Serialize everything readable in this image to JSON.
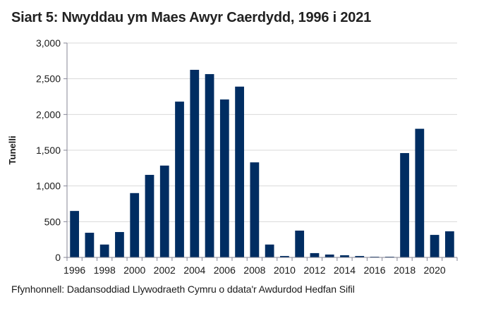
{
  "title": "Siart 5: Nwyddau ym Maes Awyr Caerdydd, 1996 i 2021",
  "source": "Ffynhonnell: Dadansoddiad Llywodraeth Cymru o ddata'r Awdurdod Hedfan Sifil",
  "colors": {
    "bar": "#002D62",
    "grid": "#D9D9D9",
    "axis": "#868696"
  },
  "chart_data": {
    "type": "bar",
    "title": "Siart 5: Nwyddau ym Maes Awyr Caerdydd, 1996 i 2021",
    "xlabel": "",
    "ylabel": "Tunelli",
    "ylim": [
      0,
      3000
    ],
    "yticks": [
      "0",
      "500",
      "1,000",
      "1,500",
      "2,000",
      "2,500",
      "3,000"
    ],
    "ytick_values": [
      0,
      500,
      1000,
      1500,
      2000,
      2500,
      3000
    ],
    "xtick_labels": [
      "1996",
      "1998",
      "2000",
      "2002",
      "2004",
      "2006",
      "2008",
      "2010",
      "2012",
      "2014",
      "2016",
      "2018",
      "2020"
    ],
    "grid": true,
    "legend": null,
    "categories": [
      "1996",
      "1997",
      "1998",
      "1999",
      "2000",
      "2001",
      "2002",
      "2003",
      "2004",
      "2005",
      "2006",
      "2007",
      "2008",
      "2009",
      "2010",
      "2011",
      "2012",
      "2013",
      "2014",
      "2015",
      "2016",
      "2017",
      "2018",
      "2019",
      "2020",
      "2021"
    ],
    "values": [
      650,
      345,
      180,
      355,
      900,
      1155,
      1285,
      2180,
      2625,
      2565,
      2210,
      2390,
      1330,
      180,
      20,
      375,
      60,
      40,
      30,
      20,
      10,
      10,
      1460,
      1800,
      315,
      365
    ]
  }
}
